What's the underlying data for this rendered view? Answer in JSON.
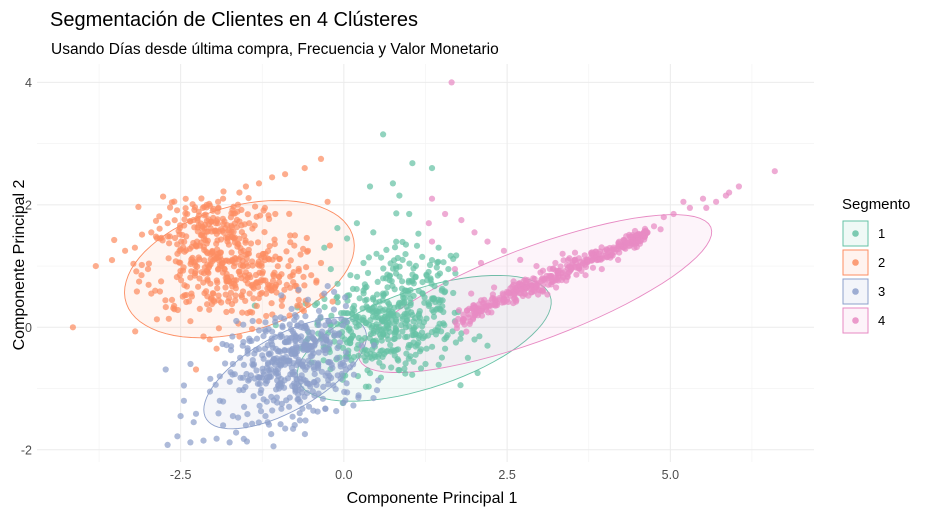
{
  "chart_data": {
    "type": "scatter",
    "title": "Segmentación de Clientes en 4 Clústeres",
    "subtitle": "Usando Días desde última compra, Frecuencia y Valor Monetario",
    "xlabel": "Componente Principal 1",
    "ylabel": "Componente Principal 2",
    "xlim": [
      -4.7,
      7.2
    ],
    "ylim": [
      -2.2,
      4.3
    ],
    "x_ticks": [
      -2.5,
      0.0,
      2.5,
      5.0
    ],
    "x_tick_labels": [
      "-2.5",
      "0.0",
      "2.5",
      "5.0"
    ],
    "y_ticks": [
      -2,
      0,
      2,
      4
    ],
    "y_tick_labels": [
      "-2",
      "0",
      "2",
      "4"
    ],
    "grid": true,
    "legend": {
      "title": "Segmento",
      "position": "right"
    },
    "series": [
      {
        "name": "1",
        "color": "#66c2a5",
        "ellipse": {
          "cx": 1.23,
          "cy": -0.18,
          "rx": 2.05,
          "ry": 0.8,
          "angle_deg": 20
        },
        "points": [
          [
            0.6,
            3.15
          ],
          [
            1.05,
            2.68
          ],
          [
            1.35,
            2.6
          ],
          [
            0.75,
            2.35
          ],
          [
            0.4,
            2.3
          ],
          [
            0.85,
            2.15
          ],
          [
            1.0,
            1.85
          ],
          [
            0.2,
            1.7
          ],
          [
            -0.1,
            1.62
          ],
          [
            0.45,
            1.55
          ],
          [
            0.05,
            1.45
          ],
          [
            0.95,
            1.35
          ],
          [
            -0.3,
            1.3
          ],
          [
            0.5,
            1.2
          ],
          [
            1.45,
            1.3
          ],
          [
            1.2,
            1.15
          ],
          [
            0.3,
            1.05
          ],
          [
            0.8,
            1.0
          ],
          [
            -0.2,
            0.95
          ],
          [
            1.6,
            0.95
          ],
          [
            0.1,
            0.85
          ],
          [
            0.6,
            0.8
          ],
          [
            1.05,
            0.75
          ],
          [
            1.5,
            0.6
          ],
          [
            -0.1,
            0.5
          ],
          [
            0.35,
            0.45
          ],
          [
            0.85,
            0.4
          ],
          [
            1.3,
            0.35
          ],
          [
            1.75,
            0.25
          ],
          [
            0.0,
            0.1
          ],
          [
            0.5,
            0.05
          ],
          [
            0.95,
            0.0
          ],
          [
            1.4,
            -0.05
          ],
          [
            1.8,
            -0.1
          ],
          [
            0.2,
            -0.35
          ],
          [
            0.65,
            -0.4
          ],
          [
            1.1,
            -0.45
          ],
          [
            1.55,
            -0.35
          ],
          [
            2.0,
            -0.2
          ],
          [
            0.4,
            -0.75
          ],
          [
            0.85,
            -0.7
          ],
          [
            1.25,
            -0.6
          ],
          [
            1.9,
            -0.5
          ],
          [
            2.2,
            -0.3
          ],
          [
            0.05,
            -0.25
          ],
          [
            0.6,
            -0.1
          ],
          [
            1.05,
            0.2
          ],
          [
            0.3,
            0.6
          ],
          [
            0.9,
            1.1
          ],
          [
            1.7,
            0.1
          ]
        ],
        "cloud": [
          {
            "x": 0.55,
            "y": -0.05,
            "sx": 0.55,
            "sy": 0.35,
            "n": 320
          },
          {
            "x": 1.0,
            "y": 0.55,
            "sx": 0.45,
            "sy": 0.4,
            "n": 120
          }
        ]
      },
      {
        "name": "2",
        "color": "#fc8d62",
        "ellipse": {
          "cx": -1.6,
          "cy": 0.95,
          "rx": 1.82,
          "ry": 1.02,
          "angle_deg": 18
        },
        "points": [
          [
            -4.15,
            0.0
          ],
          [
            -3.8,
            1.0
          ],
          [
            -3.35,
            1.25
          ],
          [
            -3.2,
            1.3
          ],
          [
            -2.95,
            1.55
          ],
          [
            -2.7,
            1.7
          ],
          [
            -2.4,
            1.85
          ],
          [
            -2.1,
            2.0
          ],
          [
            -1.85,
            2.1
          ],
          [
            -1.6,
            2.2
          ],
          [
            -1.3,
            2.35
          ],
          [
            -1.1,
            2.45
          ],
          [
            -0.9,
            2.5
          ],
          [
            -0.6,
            2.6
          ],
          [
            -0.35,
            2.75
          ],
          [
            -0.25,
            2.05
          ],
          [
            -1.5,
            2.3
          ],
          [
            -2.8,
            0.75
          ],
          [
            -2.6,
            0.35
          ],
          [
            -2.35,
            0.1
          ],
          [
            -2.15,
            -0.15
          ],
          [
            -1.95,
            -0.35
          ],
          [
            -1.6,
            -0.15
          ],
          [
            -1.3,
            0.1
          ],
          [
            -0.95,
            0.35
          ],
          [
            -0.7,
            0.6
          ],
          [
            -0.5,
            0.85
          ],
          [
            -0.35,
            1.05
          ],
          [
            -3.0,
            0.95
          ],
          [
            -2.55,
            1.2
          ],
          [
            -2.25,
            1.4
          ],
          [
            -1.75,
            1.55
          ],
          [
            -1.45,
            1.7
          ],
          [
            -1.05,
            1.85
          ],
          [
            -0.75,
            1.5
          ],
          [
            -0.55,
            1.25
          ],
          [
            -2.95,
            0.55
          ],
          [
            -2.0,
            0.55
          ],
          [
            -1.5,
            0.9
          ],
          [
            -1.2,
            1.2
          ],
          [
            -0.85,
            1.0
          ],
          [
            -1.8,
            0.25
          ]
        ],
        "cloud": [
          {
            "x": -1.95,
            "y": 1.0,
            "sx": 0.55,
            "sy": 0.42,
            "n": 260
          },
          {
            "x": -2.1,
            "y": 1.75,
            "sx": 0.4,
            "sy": 0.2,
            "n": 110
          },
          {
            "x": -1.2,
            "y": 0.75,
            "sx": 0.45,
            "sy": 0.35,
            "n": 110
          }
        ]
      },
      {
        "name": "3",
        "color": "#8da0cb",
        "ellipse": {
          "cx": -0.9,
          "cy": -0.75,
          "rx": 1.42,
          "ry": 0.6,
          "angle_deg": 32
        },
        "points": [
          [
            -2.7,
            -1.92
          ],
          [
            -2.55,
            -1.78
          ],
          [
            -2.35,
            -1.88
          ],
          [
            -2.15,
            -1.85
          ],
          [
            -1.95,
            -1.82
          ],
          [
            -1.75,
            -1.88
          ],
          [
            -1.65,
            -1.72
          ],
          [
            -1.85,
            -1.6
          ],
          [
            -2.5,
            -1.45
          ],
          [
            -2.45,
            -1.2
          ],
          [
            -2.45,
            -0.95
          ],
          [
            -2.3,
            -1.55
          ],
          [
            -1.9,
            -1.2
          ],
          [
            -1.7,
            -1.45
          ],
          [
            -1.5,
            -1.6
          ],
          [
            -1.2,
            -1.45
          ],
          [
            -0.95,
            -1.25
          ],
          [
            -0.7,
            -1.1
          ],
          [
            -0.45,
            -0.9
          ],
          [
            -0.25,
            -0.75
          ],
          [
            -0.05,
            -0.6
          ],
          [
            -1.55,
            -0.3
          ],
          [
            -1.3,
            -0.05
          ],
          [
            -1.05,
            0.15
          ],
          [
            -0.8,
            0.3
          ],
          [
            -0.55,
            0.45
          ],
          [
            -0.3,
            0.55
          ],
          [
            -1.7,
            -0.6
          ],
          [
            -1.45,
            -0.85
          ],
          [
            -1.15,
            -0.7
          ],
          [
            -0.85,
            -0.55
          ],
          [
            -0.6,
            -0.35
          ],
          [
            -0.35,
            -0.2
          ],
          [
            -1.9,
            -0.8
          ],
          [
            -2.05,
            -1.05
          ]
        ],
        "cloud": [
          {
            "x": -0.85,
            "y": -0.75,
            "sx": 0.5,
            "sy": 0.38,
            "n": 300
          },
          {
            "x": -0.55,
            "y": -0.2,
            "sx": 0.35,
            "sy": 0.3,
            "n": 100
          }
        ]
      },
      {
        "name": "4",
        "color": "#e78ac3",
        "ellipse": {
          "cx": 2.93,
          "cy": 0.55,
          "rx": 2.9,
          "ry": 0.75,
          "angle_deg": 22
        },
        "points": [
          [
            1.65,
            4.0
          ],
          [
            1.35,
            2.1
          ],
          [
            1.3,
            1.7
          ],
          [
            1.35,
            1.4
          ],
          [
            1.55,
            1.85
          ],
          [
            1.8,
            1.75
          ],
          [
            2.0,
            1.55
          ],
          [
            2.2,
            1.4
          ],
          [
            2.45,
            1.25
          ],
          [
            2.7,
            1.1
          ],
          [
            2.95,
            1.0
          ],
          [
            3.2,
            0.95
          ],
          [
            3.45,
            0.9
          ],
          [
            3.7,
            0.85
          ],
          [
            3.95,
            0.95
          ],
          [
            4.2,
            1.1
          ],
          [
            4.45,
            1.3
          ],
          [
            4.65,
            1.55
          ],
          [
            4.75,
            1.65
          ],
          [
            4.9,
            1.8
          ],
          [
            5.05,
            1.85
          ],
          [
            5.3,
            1.95
          ],
          [
            5.5,
            2.1
          ],
          [
            5.7,
            2.05
          ],
          [
            5.85,
            2.15
          ],
          [
            5.9,
            2.2
          ],
          [
            6.05,
            2.3
          ],
          [
            6.6,
            2.55
          ],
          [
            5.55,
            1.95
          ],
          [
            5.2,
            2.05
          ],
          [
            4.85,
            1.6
          ],
          [
            1.95,
            0.55
          ],
          [
            2.3,
            0.65
          ],
          [
            2.6,
            0.75
          ],
          [
            2.9,
            0.8
          ],
          [
            3.25,
            0.65
          ],
          [
            1.7,
            0.95
          ],
          [
            2.1,
            1.05
          ],
          [
            2.5,
            0.45
          ],
          [
            3.05,
            0.6
          ],
          [
            3.35,
            1.2
          ]
        ],
        "line": {
          "from": [
            1.7,
            0.1
          ],
          "to": [
            4.65,
            1.52
          ],
          "spread": 0.09,
          "n": 380
        }
      }
    ]
  }
}
